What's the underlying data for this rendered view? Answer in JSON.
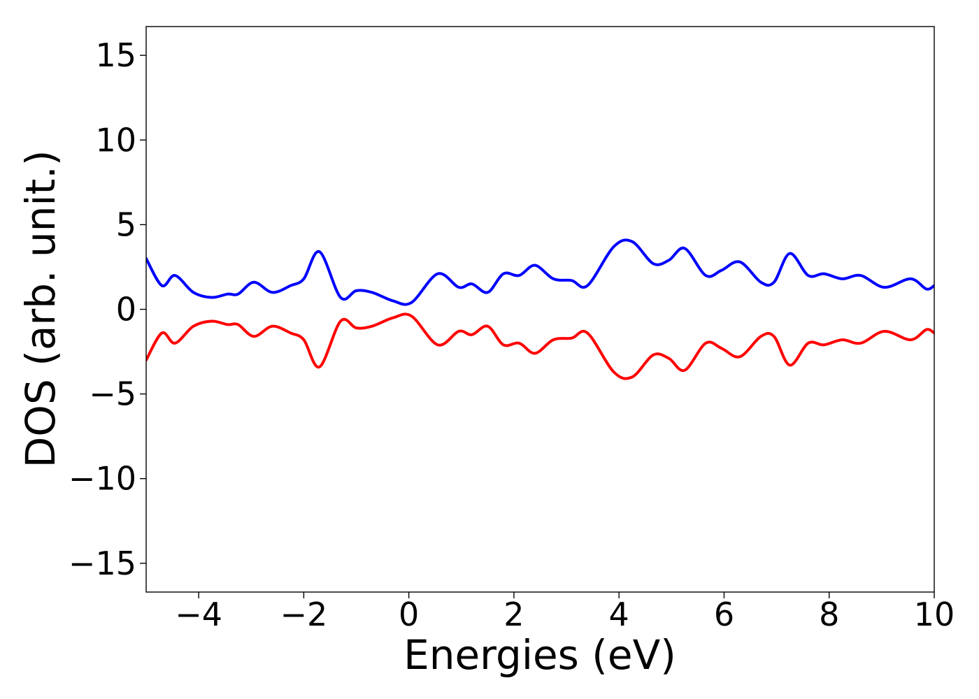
{
  "chart_data": {
    "type": "line",
    "title": "",
    "xlabel": "Energies (eV)",
    "ylabel": "DOS (arb. unit.)",
    "xlim": [
      -5,
      10
    ],
    "ylim": [
      -16.7,
      16.7
    ],
    "grid": false,
    "x_ticks": [
      -4,
      -2,
      0,
      2,
      4,
      6,
      8,
      10
    ],
    "x_tick_labels": [
      "−4",
      "−2",
      "0",
      "2",
      "4",
      "6",
      "8",
      "10"
    ],
    "y_ticks": [
      15,
      10,
      5,
      0,
      -5,
      -10,
      -15
    ],
    "y_tick_labels": [
      "15",
      "10",
      "5",
      "0",
      "−5",
      "−10",
      "−15"
    ],
    "x": [
      -5.0,
      -4.7,
      -4.45,
      -4.1,
      -3.75,
      -3.45,
      -3.25,
      -2.95,
      -2.6,
      -2.25,
      -2.0,
      -1.7,
      -1.3,
      -1.0,
      -0.7,
      -0.3,
      0.05,
      0.55,
      0.95,
      1.2,
      1.5,
      1.8,
      2.1,
      2.4,
      2.75,
      3.1,
      3.4,
      3.9,
      4.25,
      4.65,
      4.95,
      5.25,
      5.65,
      5.95,
      6.3,
      6.7,
      6.95,
      7.25,
      7.6,
      7.9,
      8.25,
      8.6,
      9.05,
      9.55,
      9.85,
      10.0
    ],
    "series": [
      {
        "color": "#0000ff",
        "values": [
          3.0,
          1.4,
          2.0,
          1.0,
          0.7,
          0.9,
          0.9,
          1.6,
          1.0,
          1.4,
          1.8,
          3.4,
          0.7,
          1.1,
          1.0,
          0.5,
          0.4,
          2.1,
          1.3,
          1.5,
          1.0,
          2.1,
          2.0,
          2.6,
          1.8,
          1.7,
          1.4,
          3.7,
          4.0,
          2.7,
          2.9,
          3.6,
          2.0,
          2.3,
          2.8,
          1.6,
          1.6,
          3.3,
          2.0,
          2.1,
          1.8,
          2.0,
          1.3,
          1.8,
          1.2,
          1.4
        ]
      },
      {
        "color": "#ff0000",
        "values": [
          -3.0,
          -1.4,
          -2.0,
          -1.0,
          -0.7,
          -0.9,
          -0.9,
          -1.6,
          -1.0,
          -1.4,
          -1.8,
          -3.4,
          -0.7,
          -1.1,
          -1.0,
          -0.5,
          -0.4,
          -2.1,
          -1.3,
          -1.5,
          -1.0,
          -2.1,
          -2.0,
          -2.6,
          -1.8,
          -1.7,
          -1.4,
          -3.7,
          -4.0,
          -2.7,
          -2.9,
          -3.6,
          -2.0,
          -2.3,
          -2.8,
          -1.6,
          -1.6,
          -3.3,
          -2.0,
          -2.1,
          -1.8,
          -2.0,
          -1.3,
          -1.8,
          -1.2,
          -1.4
        ]
      }
    ]
  }
}
